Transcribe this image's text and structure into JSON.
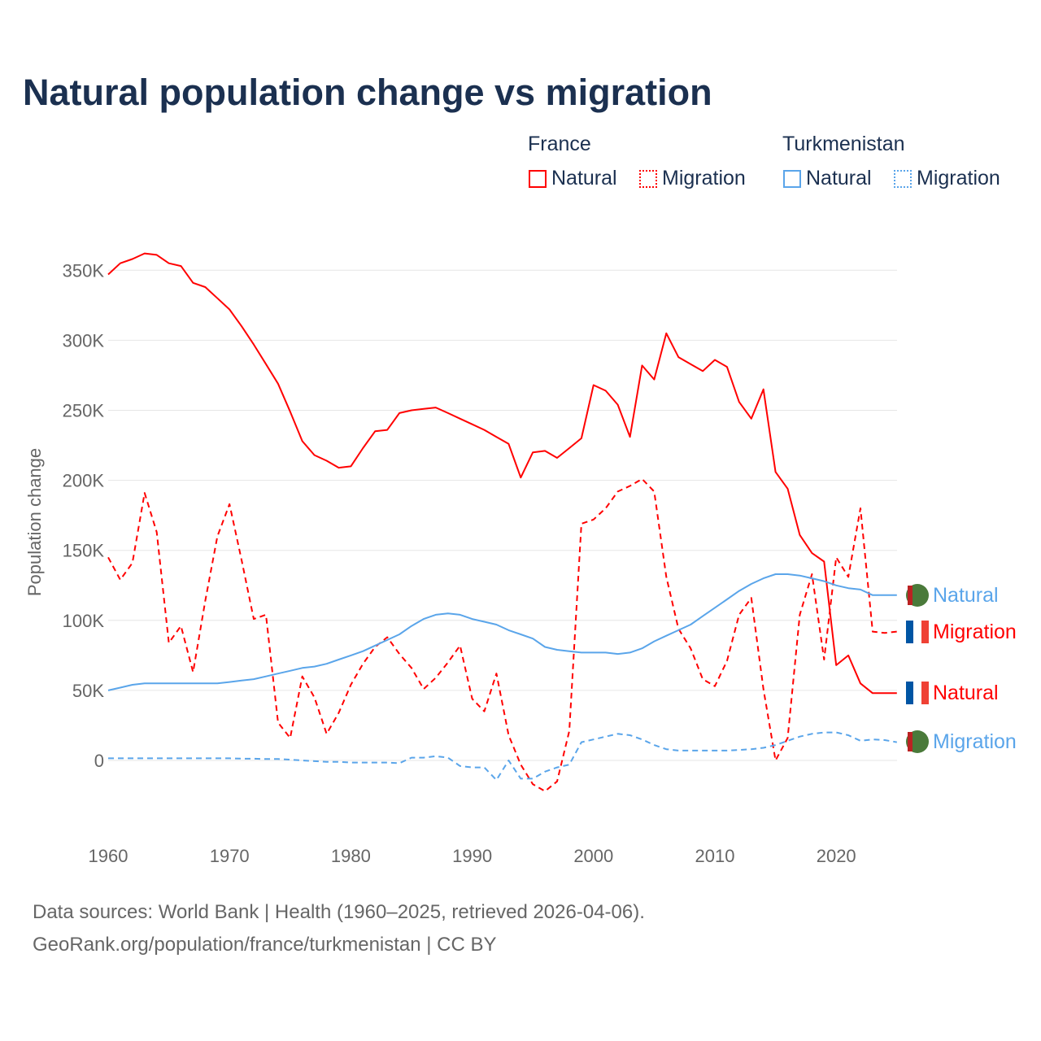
{
  "title": "Natural population change vs migration",
  "legend": {
    "groups": [
      {
        "name": "France",
        "color": "#ff0000"
      },
      {
        "name": "Turkmenistan",
        "color": "#5aa5ea"
      }
    ],
    "natural": "Natural",
    "migration": "Migration"
  },
  "footer": {
    "line1": "Data sources: World Bank | Health (1960–2025, retrieved 2026-04-06).",
    "line2": "GeoRank.org/population/france/turkmenistan | CC BY"
  },
  "chart_data": {
    "type": "line",
    "title": "Natural population change vs migration",
    "ylabel": "Population change",
    "xlabel": "",
    "ylim": [
      -35000,
      370000
    ],
    "xlim": [
      1960,
      2025
    ],
    "yticks": [
      0,
      50000,
      100000,
      150000,
      200000,
      250000,
      300000,
      350000
    ],
    "ytick_labels": [
      "0",
      "50K",
      "100K",
      "150K",
      "200K",
      "250K",
      "300K",
      "350K"
    ],
    "xticks": [
      1960,
      1970,
      1980,
      1990,
      2000,
      2010,
      2020
    ],
    "grid": true,
    "start_year": 1960,
    "end_labels": [
      {
        "series": "Turkmenistan Natural",
        "text": "Natural"
      },
      {
        "series": "France Migration",
        "text": "Migration"
      },
      {
        "series": "France Natural",
        "text": "Natural"
      },
      {
        "series": "Turkmenistan Migration",
        "text": "Migration"
      }
    ],
    "series": [
      {
        "name": "France Natural",
        "country": "France",
        "kind": "Natural",
        "color": "#ff0000",
        "dashed": false,
        "values_k": [
          347,
          355,
          358,
          362,
          361,
          355,
          353,
          341,
          338,
          330,
          322,
          310,
          297,
          283,
          269,
          249,
          228,
          218,
          214,
          209,
          210,
          223,
          235,
          236,
          248,
          250,
          251,
          252,
          248,
          244,
          240,
          236,
          231,
          226,
          202,
          220,
          221,
          216,
          223,
          230,
          268,
          264,
          254,
          231,
          282,
          272,
          305,
          288,
          283,
          278,
          286,
          281,
          256,
          244,
          265,
          206,
          194,
          161,
          148,
          142,
          68,
          75,
          55,
          48,
          48,
          48
        ]
      },
      {
        "name": "France Migration",
        "country": "France",
        "kind": "Migration",
        "color": "#ff0000",
        "dashed": true,
        "values_k": [
          145,
          129,
          141,
          191,
          163,
          84,
          96,
          63,
          114,
          160,
          183,
          143,
          101,
          104,
          27,
          16,
          60,
          45,
          19,
          34,
          54,
          69,
          81,
          88,
          76,
          66,
          51,
          59,
          70,
          82,
          44,
          35,
          62,
          18,
          -3,
          -17,
          -22,
          -15,
          21,
          169,
          172,
          180,
          192,
          196,
          201,
          192,
          131,
          94,
          80,
          58,
          53,
          71,
          104,
          116,
          51,
          0,
          16,
          104,
          133,
          72,
          145,
          131,
          180,
          92,
          91,
          92
        ]
      },
      {
        "name": "Turkmenistan Natural",
        "country": "Turkmenistan",
        "kind": "Natural",
        "color": "#5aa5ea",
        "dashed": false,
        "values_k": [
          50,
          52,
          54,
          55,
          55,
          55,
          55,
          55,
          55,
          55,
          56,
          57,
          58,
          60,
          62,
          64,
          66,
          67,
          69,
          72,
          75,
          78,
          82,
          86,
          90,
          96,
          101,
          104,
          105,
          104,
          101,
          99,
          97,
          93,
          90,
          87,
          81,
          79,
          78,
          77,
          77,
          77,
          76,
          77,
          80,
          85,
          89,
          93,
          97,
          103,
          109,
          115,
          121,
          126,
          130,
          133,
          133,
          132,
          130,
          128,
          125,
          123,
          122,
          118,
          118,
          118
        ]
      },
      {
        "name": "Turkmenistan Migration",
        "country": "Turkmenistan",
        "kind": "Migration",
        "color": "#5aa5ea",
        "dashed": true,
        "values_k": [
          1.5,
          1.5,
          1.5,
          1.5,
          1.5,
          1.5,
          1.5,
          1.5,
          1.5,
          1.5,
          1.5,
          1.3,
          1.2,
          1,
          1,
          0.5,
          0,
          -0.5,
          -1,
          -1,
          -1.5,
          -1.5,
          -1.5,
          -1.5,
          -2,
          2,
          2,
          3,
          2,
          -4,
          -5,
          -5,
          -14,
          0,
          -13,
          -13,
          -8,
          -5,
          -3,
          13,
          15,
          17,
          19,
          18,
          15,
          11,
          8,
          7,
          7,
          7,
          7,
          7,
          7.5,
          8,
          9,
          11,
          14,
          17,
          19,
          20,
          20,
          18,
          14,
          15,
          14.5,
          13
        ]
      }
    ]
  }
}
